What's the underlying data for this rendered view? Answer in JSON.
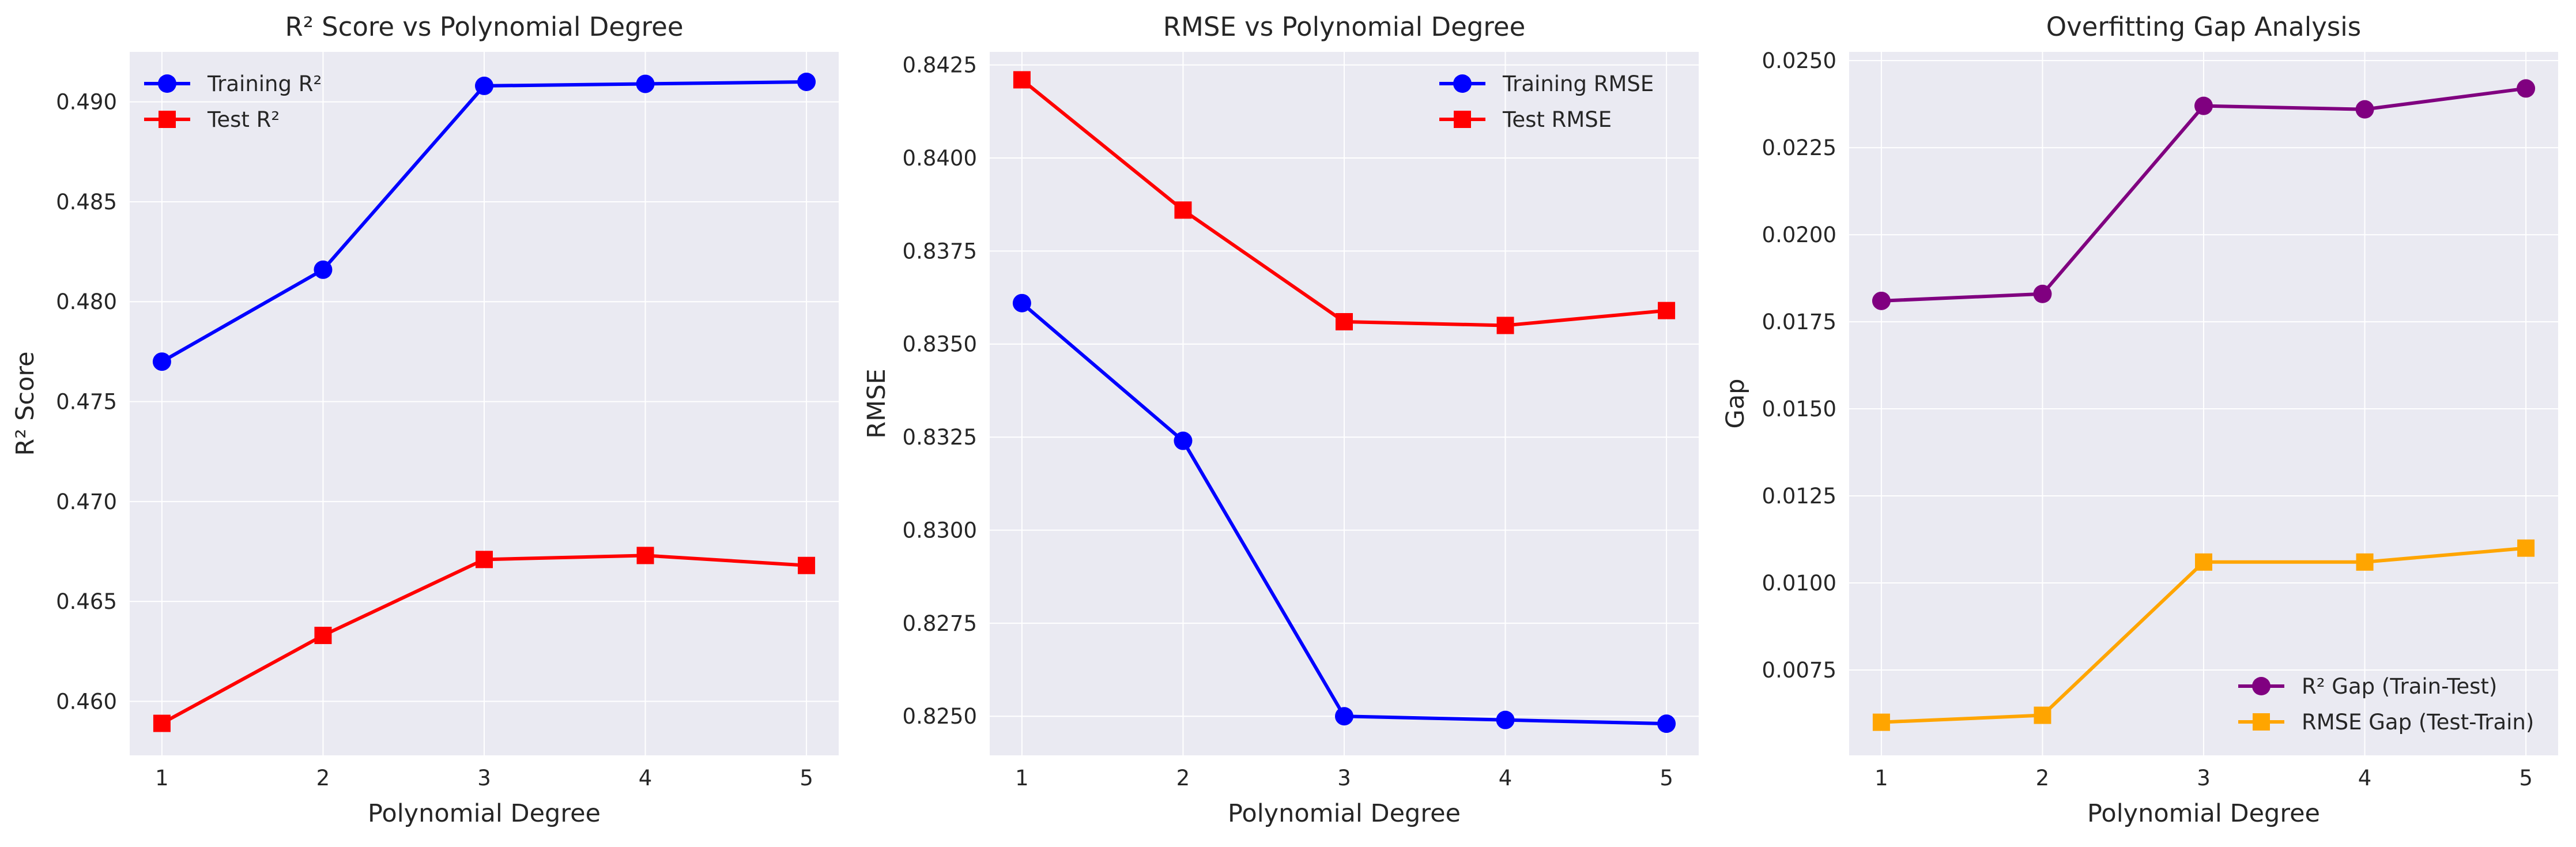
{
  "chart_data": [
    {
      "type": "line",
      "title": "R² Score vs Polynomial Degree",
      "xlabel": "Polynomial Degree",
      "ylabel": "R² Score",
      "x": [
        1,
        2,
        3,
        4,
        5
      ],
      "xticks": [
        "1",
        "2",
        "3",
        "4",
        "5"
      ],
      "xlim": [
        0.8,
        5.2
      ],
      "ylim": [
        0.4573,
        0.4925
      ],
      "yticks": [
        "0.460",
        "0.465",
        "0.470",
        "0.475",
        "0.480",
        "0.485",
        "0.490"
      ],
      "ytick_values": [
        0.46,
        0.465,
        0.47,
        0.475,
        0.48,
        0.485,
        0.49
      ],
      "grid": true,
      "legend_position": "top-left",
      "series": [
        {
          "name": "Training R²",
          "values": [
            0.477,
            0.4816,
            0.4908,
            0.4909,
            0.491
          ],
          "color": "#0000ff",
          "marker": "circle"
        },
        {
          "name": "Test R²",
          "values": [
            0.4589,
            0.4633,
            0.4671,
            0.4673,
            0.4668
          ],
          "color": "#ff0000",
          "marker": "square"
        }
      ]
    },
    {
      "type": "line",
      "title": "RMSE vs Polynomial Degree",
      "xlabel": "Polynomial Degree",
      "ylabel": "RMSE",
      "x": [
        1,
        2,
        3,
        4,
        5
      ],
      "xticks": [
        "1",
        "2",
        "3",
        "4",
        "5"
      ],
      "xlim": [
        0.8,
        5.2
      ],
      "ylim": [
        0.82395,
        0.84285
      ],
      "yticks": [
        "0.8250",
        "0.8275",
        "0.8300",
        "0.8325",
        "0.8350",
        "0.8375",
        "0.8400",
        "0.8425"
      ],
      "ytick_values": [
        0.825,
        0.8275,
        0.83,
        0.8325,
        0.835,
        0.8375,
        0.84,
        0.8425
      ],
      "grid": true,
      "legend_position": "top-right",
      "series": [
        {
          "name": "Training RMSE",
          "values": [
            0.8361,
            0.8324,
            0.825,
            0.8249,
            0.8248
          ],
          "color": "#0000ff",
          "marker": "circle"
        },
        {
          "name": "Test RMSE",
          "values": [
            0.8421,
            0.8386,
            0.8356,
            0.8355,
            0.8359
          ],
          "color": "#ff0000",
          "marker": "square"
        }
      ]
    },
    {
      "type": "line",
      "title": "Overfitting Gap Analysis",
      "xlabel": "Polynomial Degree",
      "ylabel": "Gap",
      "x": [
        1,
        2,
        3,
        4,
        5
      ],
      "xticks": [
        "1",
        "2",
        "3",
        "4",
        "5"
      ],
      "xlim": [
        0.8,
        5.2
      ],
      "ylim": [
        0.00505,
        0.02525
      ],
      "yticks": [
        "0.0075",
        "0.0100",
        "0.0125",
        "0.0150",
        "0.0175",
        "0.0200",
        "0.0225",
        "0.0250"
      ],
      "ytick_values": [
        0.0075,
        0.01,
        0.0125,
        0.015,
        0.0175,
        0.02,
        0.0225,
        0.025
      ],
      "grid": true,
      "legend_position": "bottom-right",
      "series": [
        {
          "name": "R² Gap (Train-Test)",
          "values": [
            0.0181,
            0.0183,
            0.0237,
            0.0236,
            0.0242
          ],
          "color": "#800080",
          "marker": "circle"
        },
        {
          "name": "RMSE Gap (Test-Train)",
          "values": [
            0.006,
            0.0062,
            0.0106,
            0.0106,
            0.011
          ],
          "color": "#ffa500",
          "marker": "square"
        }
      ]
    }
  ]
}
